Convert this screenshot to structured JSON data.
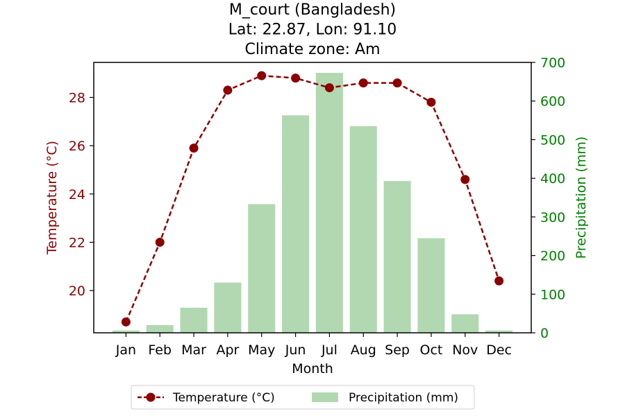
{
  "chart_data": {
    "type": "bar+line",
    "title": [
      "M_court (Bangladesh)",
      "Lat: 22.87, Lon: 91.10",
      "Climate zone: Am"
    ],
    "xlabel": "Month",
    "categories": [
      "Jan",
      "Feb",
      "Mar",
      "Apr",
      "May",
      "Jun",
      "Jul",
      "Aug",
      "Sep",
      "Oct",
      "Nov",
      "Dec"
    ],
    "temperature": {
      "name": "Temperature (°C)",
      "axis_label": "Temperature (°C)",
      "color": "#8b0000",
      "style": "dashed line with circle markers",
      "values": [
        18.7,
        22.0,
        25.9,
        28.3,
        28.9,
        28.8,
        28.4,
        28.6,
        28.6,
        27.8,
        24.6,
        20.4
      ],
      "ylim": [
        18.25,
        29.45
      ],
      "ticks": [
        20,
        22,
        24,
        26,
        28
      ]
    },
    "precipitation": {
      "name": "Precipitation (mm)",
      "axis_label": "Precipitation (mm)",
      "color": "#b2d8b2",
      "axis_color": "#008000",
      "values": [
        6,
        20,
        65,
        130,
        333,
        563,
        673,
        535,
        393,
        245,
        48,
        6
      ],
      "ylim": [
        0,
        700
      ],
      "ticks": [
        0,
        100,
        200,
        300,
        400,
        500,
        600,
        700
      ]
    },
    "legend": {
      "placement": "below-center",
      "entries": [
        "Temperature (°C)",
        "Precipitation (mm)"
      ]
    },
    "grid": false
  }
}
